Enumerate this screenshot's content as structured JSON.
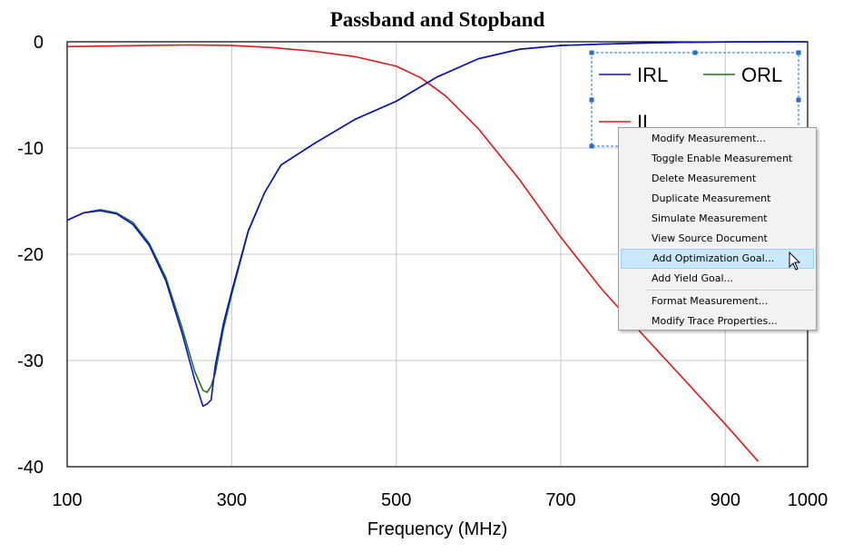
{
  "chart_data": {
    "type": "line",
    "title": "Passband and Stopband",
    "xlabel": "Frequency (MHz)",
    "ylabel": "",
    "xlim": [
      100,
      1000
    ],
    "ylim": [
      -40,
      0
    ],
    "x_ticks": [
      100,
      300,
      500,
      700,
      900,
      1000
    ],
    "x_tick_labels": [
      "100",
      "300",
      "500",
      "700",
      "900",
      "1000"
    ],
    "y_ticks": [
      0,
      -10,
      -20,
      -30,
      -40
    ],
    "y_tick_labels": [
      "0",
      "-10",
      "-20",
      "-30",
      "-40"
    ],
    "x_grid": [
      100,
      300,
      500,
      700,
      900
    ],
    "y_grid": [
      0,
      -10,
      -20,
      -30
    ],
    "grid": true,
    "legend_position": "top-right",
    "series": [
      {
        "name": "IRL",
        "color": "#1010c0",
        "x": [
          100,
          120,
          140,
          160,
          180,
          200,
          220,
          240,
          255,
          265,
          270,
          275,
          280,
          290,
          300,
          320,
          340,
          360,
          400,
          450,
          500,
          550,
          600,
          650,
          700,
          750,
          800,
          850,
          900,
          950,
          1000
        ],
        "y": [
          -16.8,
          -16.1,
          -15.9,
          -16.2,
          -17.2,
          -19.2,
          -22.5,
          -27.5,
          -31.8,
          -34.3,
          -34.1,
          -33.7,
          -30.5,
          -26.5,
          -23.5,
          -17.8,
          -14.2,
          -11.6,
          -9.6,
          -7.3,
          -5.6,
          -3.3,
          -1.6,
          -0.7,
          -0.35,
          -0.22,
          -0.12,
          -0.05,
          -0.02,
          -0.01,
          0
        ]
      },
      {
        "name": "ORL",
        "color": "#1a7a1a",
        "x": [
          100,
          120,
          140,
          160,
          180,
          200,
          220,
          240,
          255,
          265,
          270,
          275,
          280,
          290,
          300,
          320,
          340,
          360,
          400,
          450,
          500,
          550,
          600,
          650,
          700,
          750,
          800,
          850,
          900,
          950,
          1000
        ],
        "y": [
          -16.8,
          -16.1,
          -15.8,
          -16.1,
          -17.0,
          -19.0,
          -22.2,
          -27.0,
          -31.0,
          -32.8,
          -33.0,
          -32.4,
          -31.2,
          -27.0,
          -23.8,
          -17.9,
          -14.2,
          -11.6,
          -9.6,
          -7.3,
          -5.6,
          -3.3,
          -1.6,
          -0.7,
          -0.35,
          -0.22,
          -0.12,
          -0.05,
          -0.02,
          -0.01,
          0
        ]
      },
      {
        "name": "IL",
        "color": "#e01818",
        "x": [
          100,
          150,
          200,
          250,
          300,
          350,
          400,
          450,
          500,
          530,
          560,
          600,
          650,
          700,
          750,
          800,
          850,
          900,
          940
        ],
        "y": [
          -0.45,
          -0.4,
          -0.35,
          -0.3,
          -0.35,
          -0.55,
          -0.9,
          -1.4,
          -2.3,
          -3.4,
          -5.1,
          -8.2,
          -13.0,
          -18.4,
          -23.3,
          -27.6,
          -31.8,
          -36.0,
          -39.5
        ]
      }
    ]
  },
  "context_menu": {
    "items": [
      "Modify Measurement...",
      "Toggle Enable Measurement",
      "Delete Measurement",
      "Duplicate Measurement",
      "Simulate Measurement",
      "View Source Document",
      "Add Optimization Goal...",
      "Add Yield Goal...",
      "Format Measurement...",
      "Modify Trace Properties..."
    ],
    "highlighted_item": "Add Optimization Goal...",
    "highlight_color": "#cce8ff"
  },
  "cursor_icon": "arrow-pointer-icon",
  "legend_selection_color": "#1e6fd9"
}
